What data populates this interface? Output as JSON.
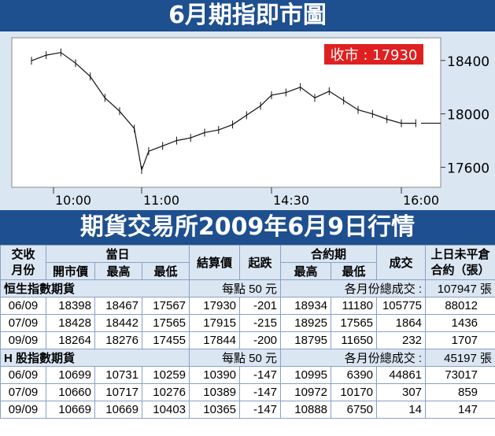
{
  "title": "6月期指即市圖",
  "table_title": "期貨交易所2009年6月9日行情",
  "close_label": "收市 : 17930",
  "chart_data": {
    "type": "line",
    "title": "6月期指即市圖",
    "y_ticks": [
      18400,
      18000,
      17600
    ],
    "x_ticks": [
      "10:00",
      "11:00",
      "14:30",
      "16:00"
    ],
    "ylim": [
      17450,
      18570
    ],
    "close_value": 17930,
    "x": [
      "09:45",
      "09:55",
      "10:05",
      "10:15",
      "10:25",
      "10:35",
      "10:45",
      "10:55",
      "11:00",
      "11:05",
      "11:15",
      "11:25",
      "11:35",
      "11:45",
      "11:55",
      "12:05",
      "12:15",
      "12:25",
      "14:30",
      "14:40",
      "14:50",
      "15:00",
      "15:10",
      "15:20",
      "15:30",
      "15:40",
      "15:50",
      "16:00",
      "16:10"
    ],
    "values": [
      18398,
      18440,
      18460,
      18380,
      18280,
      18120,
      18020,
      17890,
      17580,
      17720,
      17760,
      17800,
      17820,
      17860,
      17880,
      17920,
      17990,
      18060,
      18140,
      18160,
      18200,
      18120,
      18170,
      18100,
      18030,
      18000,
      17960,
      17930,
      17930
    ],
    "grid": false
  },
  "table": {
    "headers": {
      "month": "交收\n月份",
      "day": "當日",
      "open": "開市價",
      "high": "最高",
      "low": "最低",
      "settle": "結算價",
      "change": "起跌",
      "contract": "合約期",
      "c_high": "最高",
      "c_low": "最低",
      "volume": "成交",
      "oi": "上日未平倉\n合約（張）"
    },
    "sections": [
      {
        "name": "恒生指數期貨",
        "point_note": "每點 50 元",
        "total_note": "各月份總成交 :",
        "total_value": "107947 張",
        "rows": [
          [
            "06/09",
            "18398",
            "18467",
            "17567",
            "17930",
            "-201",
            "18934",
            "11180",
            "105775",
            "88012"
          ],
          [
            "07/09",
            "18428",
            "18442",
            "17565",
            "17915",
            "-215",
            "18925",
            "17565",
            "1864",
            "1436"
          ],
          [
            "09/09",
            "18264",
            "18276",
            "17455",
            "17844",
            "-200",
            "18795",
            "11650",
            "232",
            "1707"
          ]
        ]
      },
      {
        "name": "H 股指數期貨",
        "point_note": "每點 50 元",
        "total_note": "各月份總成交 :",
        "total_value": "45197 張",
        "rows": [
          [
            "06/09",
            "10699",
            "10731",
            "10259",
            "10390",
            "-147",
            "10995",
            "6390",
            "44861",
            "73017"
          ],
          [
            "07/09",
            "10660",
            "10717",
            "10276",
            "10389",
            "-147",
            "10972",
            "10170",
            "307",
            "859"
          ],
          [
            "09/09",
            "10669",
            "10669",
            "10403",
            "10365",
            "-147",
            "10888",
            "6750",
            "14",
            "147"
          ]
        ]
      }
    ]
  }
}
